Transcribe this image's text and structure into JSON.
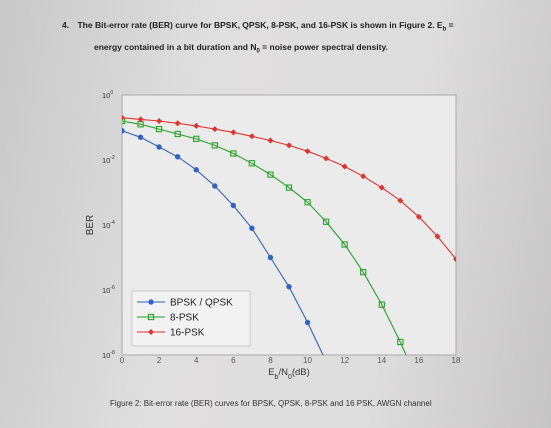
{
  "question": {
    "number": "4.",
    "line1": "The Bit-error rate (BER) curve for BPSK, QPSK, 8-PSK, and 16-PSK is shown in Figure 2. E",
    "line1_sub": "b",
    "line1_tail": " =",
    "line2_a": "energy contained in a bit duration  and  N",
    "line2_sub": "0",
    "line2_b": " = noise power spectral density."
  },
  "chart_data": {
    "type": "line",
    "xlabel_main": "E",
    "xlabel_sub1": "b",
    "xlabel_mid": "/N",
    "xlabel_sub2": "0",
    "xlabel_tail": "(dB)",
    "ylabel": "BER",
    "xlim": [
      0,
      18
    ],
    "ylim_log10": [
      -8,
      0
    ],
    "x_ticks": [
      "0",
      "2",
      "4",
      "6",
      "8",
      "10",
      "12",
      "14",
      "16",
      "18"
    ],
    "y_ticks": [
      {
        "base": "10",
        "exp": "0",
        "log10": 0
      },
      {
        "base": "10",
        "exp": "-2",
        "log10": -2
      },
      {
        "base": "10",
        "exp": "-4",
        "log10": -4
      },
      {
        "base": "10",
        "exp": "-6",
        "log10": -6
      },
      {
        "base": "10",
        "exp": "-8",
        "log10": -8
      }
    ],
    "grid": false,
    "legend_position": "bottom-left",
    "series": [
      {
        "name": "BPSK / QPSK",
        "color": "#2f64c4",
        "marker": "circle",
        "x": [
          0,
          1,
          2,
          3,
          4,
          5,
          6,
          7,
          8,
          9,
          10,
          11,
          12
        ],
        "log10_y": [
          -1.1,
          -1.3,
          -1.6,
          -1.9,
          -2.3,
          -2.8,
          -3.4,
          -4.1,
          -5.0,
          -5.9,
          -7.0,
          -8.2,
          -9.6
        ]
      },
      {
        "name": "8-PSK",
        "color": "#27a327",
        "marker": "square",
        "x": [
          0,
          1,
          2,
          3,
          4,
          5,
          6,
          7,
          8,
          9,
          10,
          11,
          12,
          13,
          14,
          15,
          16
        ],
        "log10_y": [
          -0.8,
          -0.9,
          -1.05,
          -1.2,
          -1.35,
          -1.55,
          -1.8,
          -2.1,
          -2.45,
          -2.85,
          -3.3,
          -3.9,
          -4.6,
          -5.45,
          -6.45,
          -7.6,
          -8.9
        ]
      },
      {
        "name": "16-PSK",
        "color": "#e0342e",
        "marker": "diamond",
        "x": [
          0,
          1,
          2,
          3,
          4,
          5,
          6,
          7,
          8,
          9,
          10,
          11,
          12,
          13,
          14,
          15,
          16,
          17,
          18
        ],
        "log10_y": [
          -0.7,
          -0.75,
          -0.8,
          -0.87,
          -0.95,
          -1.05,
          -1.15,
          -1.27,
          -1.4,
          -1.55,
          -1.73,
          -1.95,
          -2.2,
          -2.5,
          -2.85,
          -3.25,
          -3.75,
          -4.35,
          -5.05
        ]
      }
    ]
  },
  "caption": "Figure 2: Bit-error rate (BER) curves for BPSK, QPSK, 8-PSK and 16 PSK, AWGN channel"
}
